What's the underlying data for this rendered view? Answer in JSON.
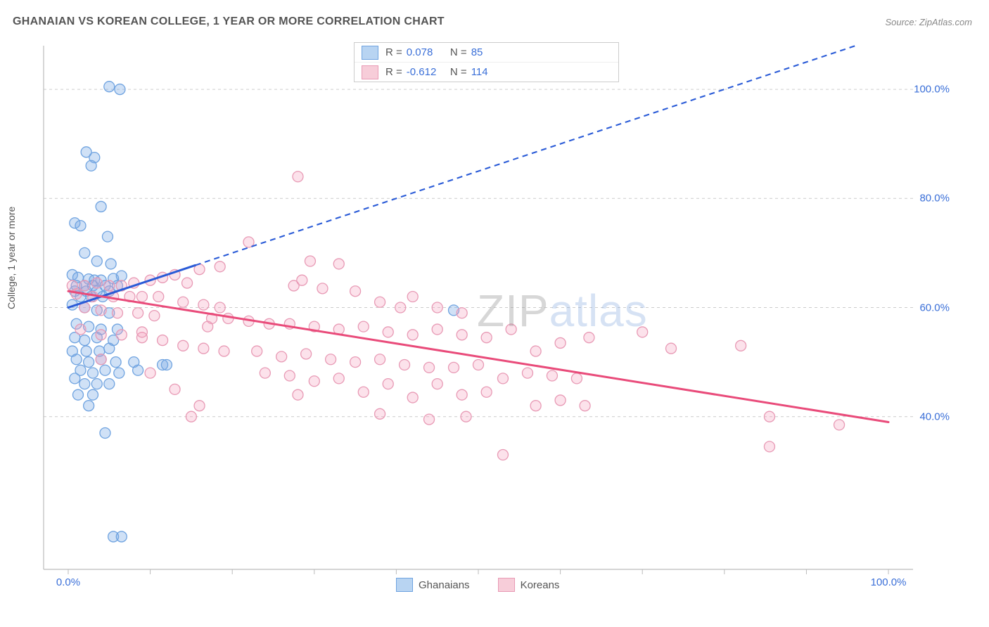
{
  "title": "GHANAIAN VS KOREAN COLLEGE, 1 YEAR OR MORE CORRELATION CHART",
  "source": "Source: ZipAtlas.com",
  "ylabel": "College, 1 year or more",
  "watermark": {
    "zip": "ZIP",
    "atlas": "atlas"
  },
  "chart": {
    "type": "scatter",
    "background_color": "#ffffff",
    "grid_color": "#cccccc",
    "grid_dash": "4,4",
    "axis_color": "#bbbbbb",
    "tick_color": "#bbbbbb",
    "label_color": "#3a6fd8",
    "title_color": "#555555",
    "title_fontsize": 16,
    "label_fontsize": 14,
    "tick_fontsize": 15,
    "xlim": [
      -3,
      103
    ],
    "ylim": [
      12,
      108
    ],
    "yticks": [
      40,
      60,
      80,
      100
    ],
    "ytick_labels": [
      "40.0%",
      "60.0%",
      "80.0%",
      "100.0%"
    ],
    "xticks": [
      0,
      10,
      20,
      30,
      40,
      50,
      60,
      70,
      80,
      90,
      100
    ],
    "xtick_labels_shown": {
      "0": "0.0%",
      "100": "100.0%"
    },
    "marker_radius": 7.5,
    "marker_stroke_width": 1.3,
    "series": [
      {
        "name": "Ghanaians",
        "fill": "rgba(120,170,230,0.35)",
        "stroke": "#6fa3e0",
        "swatch_fill": "#b8d4f2",
        "swatch_stroke": "#6fa3e0",
        "R": "0.078",
        "N": "85",
        "trend": {
          "color": "#2a5bd7",
          "width": 3,
          "solid_range": [
            0,
            15.5
          ],
          "dash_range": [
            15.5,
            100
          ],
          "y_at_x0": 60.0,
          "y_at_x100": 110.0,
          "dash": "8,6"
        },
        "points": [
          [
            5.0,
            100.5
          ],
          [
            6.3,
            100.0
          ],
          [
            2.2,
            88.5
          ],
          [
            3.2,
            87.5
          ],
          [
            2.8,
            86.0
          ],
          [
            4.0,
            78.5
          ],
          [
            0.8,
            75.5
          ],
          [
            1.5,
            75.0
          ],
          [
            4.8,
            73.0
          ],
          [
            2.0,
            70.0
          ],
          [
            3.5,
            68.5
          ],
          [
            5.2,
            68.0
          ],
          [
            0.5,
            66.0
          ],
          [
            1.2,
            65.5
          ],
          [
            2.5,
            65.2
          ],
          [
            3.2,
            65.0
          ],
          [
            4.0,
            65.0
          ],
          [
            5.5,
            65.3
          ],
          [
            6.5,
            65.8
          ],
          [
            1.0,
            64.0
          ],
          [
            2.0,
            64.0
          ],
          [
            3.0,
            64.0
          ],
          [
            4.5,
            64.0
          ],
          [
            6.0,
            64.0
          ],
          [
            0.8,
            63.0
          ],
          [
            2.2,
            63.0
          ],
          [
            3.5,
            63.0
          ],
          [
            5.0,
            63.0
          ],
          [
            1.5,
            62.0
          ],
          [
            2.8,
            62.0
          ],
          [
            4.2,
            62.0
          ],
          [
            0.5,
            60.5
          ],
          [
            2.0,
            60.0
          ],
          [
            3.5,
            59.5
          ],
          [
            5.0,
            59.0
          ],
          [
            1.0,
            57.0
          ],
          [
            2.5,
            56.5
          ],
          [
            4.0,
            56.0
          ],
          [
            6.0,
            56.0
          ],
          [
            0.8,
            54.5
          ],
          [
            2.0,
            54.0
          ],
          [
            3.5,
            54.5
          ],
          [
            5.5,
            54.0
          ],
          [
            0.5,
            52.0
          ],
          [
            2.2,
            52.0
          ],
          [
            3.8,
            52.0
          ],
          [
            5.0,
            52.5
          ],
          [
            1.0,
            50.5
          ],
          [
            2.5,
            50.0
          ],
          [
            4.0,
            50.5
          ],
          [
            5.8,
            50.0
          ],
          [
            8.0,
            50.0
          ],
          [
            1.5,
            48.5
          ],
          [
            3.0,
            48.0
          ],
          [
            4.5,
            48.5
          ],
          [
            6.2,
            48.0
          ],
          [
            8.5,
            48.5
          ],
          [
            0.8,
            47.0
          ],
          [
            11.5,
            49.5
          ],
          [
            12.0,
            49.5
          ],
          [
            2.0,
            46.0
          ],
          [
            3.5,
            46.0
          ],
          [
            5.0,
            46.0
          ],
          [
            1.2,
            44.0
          ],
          [
            3.0,
            44.0
          ],
          [
            2.5,
            42.0
          ],
          [
            4.5,
            37.0
          ],
          [
            47.0,
            59.5
          ],
          [
            5.5,
            18.0
          ],
          [
            6.5,
            18.0
          ]
        ]
      },
      {
        "name": "Koreans",
        "fill": "rgba(245,160,190,0.30)",
        "stroke": "#e89ab5",
        "swatch_fill": "#f7cdd9",
        "swatch_stroke": "#e89ab5",
        "R": "-0.612",
        "N": "114",
        "trend": {
          "color": "#e94b7a",
          "width": 3,
          "solid_range": [
            0,
            100
          ],
          "y_at_x0": 63.0,
          "y_at_x100": 39.0
        },
        "points": [
          [
            28.0,
            84.0
          ],
          [
            29.5,
            68.5
          ],
          [
            33.0,
            68.0
          ],
          [
            16.0,
            67.0
          ],
          [
            18.5,
            67.5
          ],
          [
            22.0,
            72.0
          ],
          [
            8.0,
            64.5
          ],
          [
            10.0,
            65.0
          ],
          [
            11.5,
            65.5
          ],
          [
            13.0,
            66.0
          ],
          [
            14.5,
            64.5
          ],
          [
            0.5,
            64.0
          ],
          [
            2.0,
            64.0
          ],
          [
            3.5,
            64.5
          ],
          [
            5.0,
            64.0
          ],
          [
            6.5,
            64.0
          ],
          [
            27.5,
            64.0
          ],
          [
            28.5,
            65.0
          ],
          [
            31.0,
            63.5
          ],
          [
            35.0,
            63.0
          ],
          [
            38.0,
            61.0
          ],
          [
            40.5,
            60.0
          ],
          [
            42.0,
            62.0
          ],
          [
            45.0,
            60.0
          ],
          [
            48.0,
            59.0
          ],
          [
            1.0,
            62.5
          ],
          [
            3.0,
            62.0
          ],
          [
            5.5,
            62.0
          ],
          [
            7.5,
            62.0
          ],
          [
            9.0,
            62.0
          ],
          [
            11.0,
            62.0
          ],
          [
            14.0,
            61.0
          ],
          [
            16.5,
            60.5
          ],
          [
            18.5,
            60.0
          ],
          [
            2.0,
            60.0
          ],
          [
            4.0,
            59.5
          ],
          [
            6.0,
            59.0
          ],
          [
            8.5,
            59.0
          ],
          [
            10.5,
            58.5
          ],
          [
            17.5,
            58.0
          ],
          [
            17.0,
            56.5
          ],
          [
            19.5,
            58.0
          ],
          [
            22.0,
            57.5
          ],
          [
            24.5,
            57.0
          ],
          [
            27.0,
            57.0
          ],
          [
            30.0,
            56.5
          ],
          [
            33.0,
            56.0
          ],
          [
            36.0,
            56.5
          ],
          [
            39.0,
            55.5
          ],
          [
            42.0,
            55.0
          ],
          [
            45.0,
            56.0
          ],
          [
            48.0,
            55.0
          ],
          [
            51.0,
            54.5
          ],
          [
            54.0,
            56.0
          ],
          [
            57.0,
            52.0
          ],
          [
            1.5,
            56.0
          ],
          [
            4.0,
            55.0
          ],
          [
            6.5,
            55.0
          ],
          [
            9.0,
            54.5
          ],
          [
            11.5,
            54.0
          ],
          [
            9.0,
            55.5
          ],
          [
            14.0,
            53.0
          ],
          [
            16.5,
            52.5
          ],
          [
            19.0,
            52.0
          ],
          [
            23.0,
            52.0
          ],
          [
            26.0,
            51.0
          ],
          [
            29.0,
            51.5
          ],
          [
            32.0,
            50.5
          ],
          [
            35.0,
            50.0
          ],
          [
            38.0,
            50.5
          ],
          [
            41.0,
            49.5
          ],
          [
            44.0,
            49.0
          ],
          [
            47.0,
            49.0
          ],
          [
            50.0,
            49.5
          ],
          [
            53.0,
            47.0
          ],
          [
            56.0,
            48.0
          ],
          [
            59.0,
            47.5
          ],
          [
            62.0,
            47.0
          ],
          [
            60.0,
            53.5
          ],
          [
            24.0,
            48.0
          ],
          [
            27.0,
            47.5
          ],
          [
            30.0,
            46.5
          ],
          [
            28.0,
            44.0
          ],
          [
            33.0,
            47.0
          ],
          [
            36.0,
            44.5
          ],
          [
            39.0,
            46.0
          ],
          [
            42.0,
            43.5
          ],
          [
            45.0,
            46.0
          ],
          [
            48.0,
            44.0
          ],
          [
            51.0,
            44.5
          ],
          [
            4.0,
            50.5
          ],
          [
            10.0,
            48.0
          ],
          [
            13.0,
            45.0
          ],
          [
            16.0,
            42.0
          ],
          [
            15.0,
            40.0
          ],
          [
            57.0,
            42.0
          ],
          [
            60.0,
            43.0
          ],
          [
            63.0,
            42.0
          ],
          [
            63.5,
            54.5
          ],
          [
            70.0,
            55.5
          ],
          [
            73.5,
            52.5
          ],
          [
            82.0,
            53.0
          ],
          [
            38.0,
            40.5
          ],
          [
            44.0,
            39.5
          ],
          [
            48.5,
            40.0
          ],
          [
            53.0,
            33.0
          ],
          [
            85.5,
            40.0
          ],
          [
            94.0,
            38.5
          ],
          [
            85.5,
            34.5
          ]
        ]
      }
    ]
  },
  "bottom_legend": [
    {
      "label": "Ghanaians",
      "fill": "#b8d4f2",
      "stroke": "#6fa3e0"
    },
    {
      "label": "Koreans",
      "fill": "#f7cdd9",
      "stroke": "#e89ab5"
    }
  ]
}
